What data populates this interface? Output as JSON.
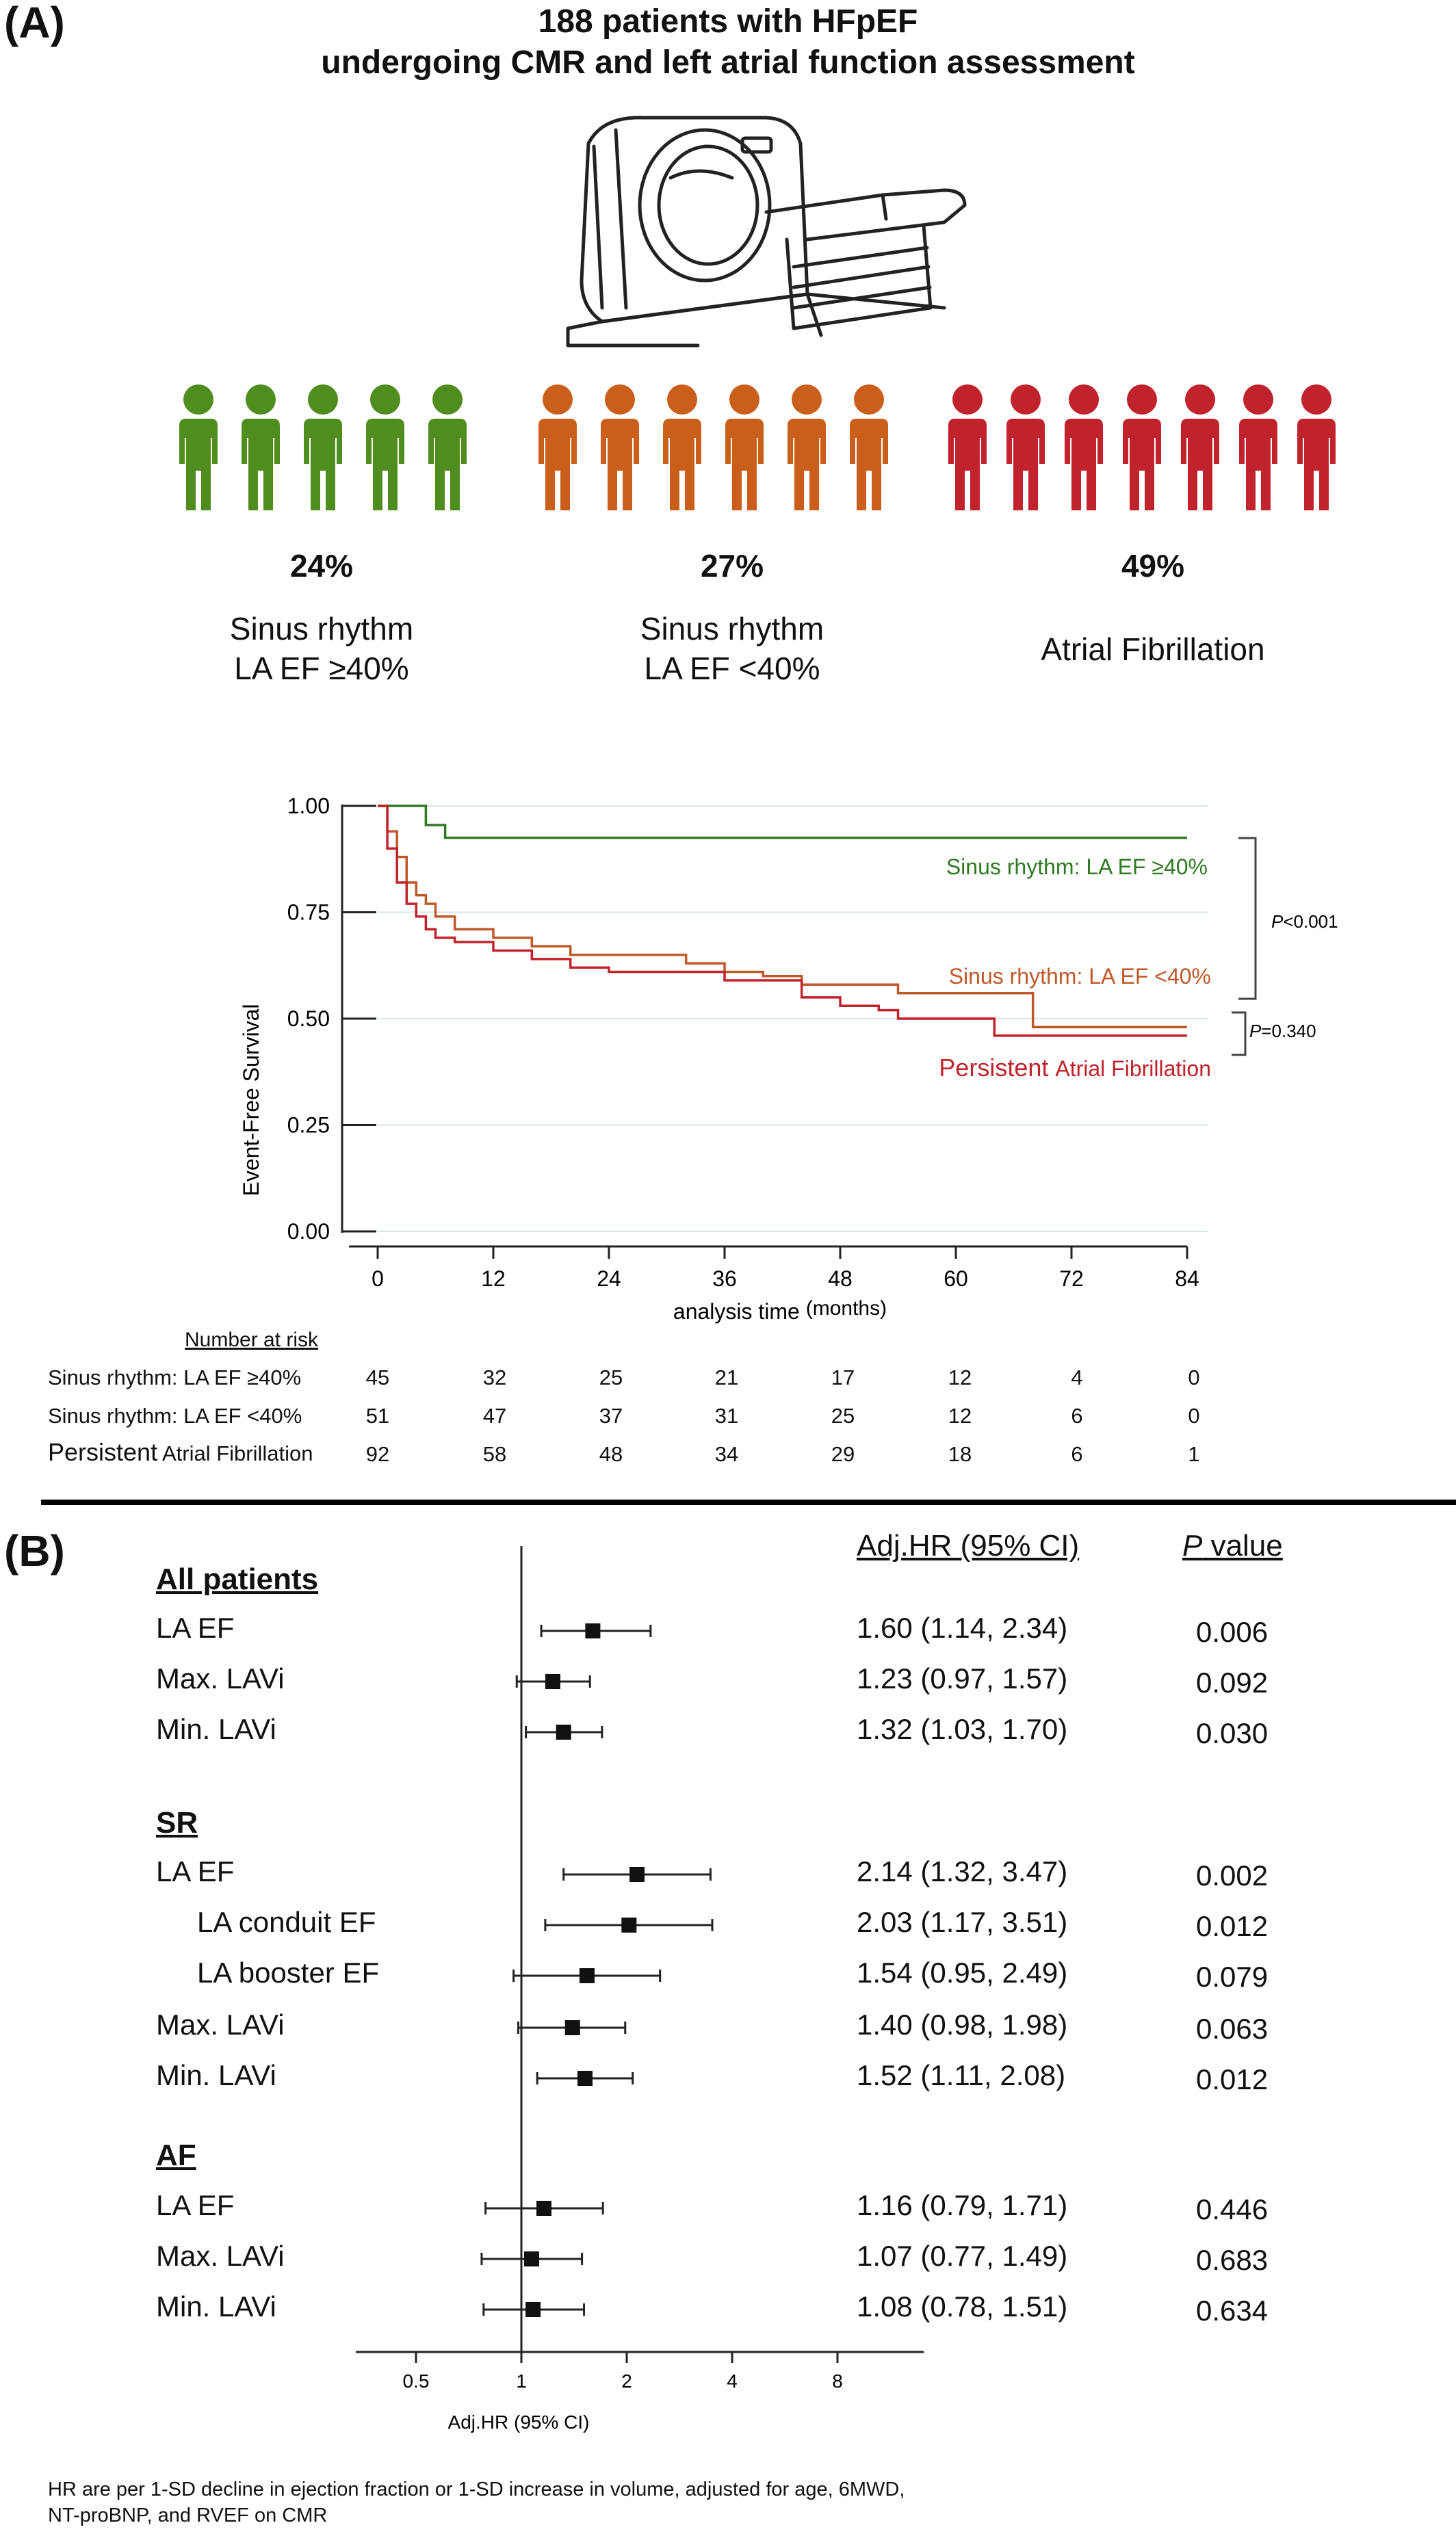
{
  "panel_a": {
    "letter": "(A)",
    "title_line1": "188 patients with HFpEF",
    "title_line2": "undergoing CMR and left atrial function assessment",
    "icon": "mri-scanner-icon",
    "groups": [
      {
        "pct": "24%",
        "label1": "Sinus rhythm",
        "label2": "LA EF ≥40%",
        "color": "#4f8d1e",
        "figures": 5
      },
      {
        "pct": "27%",
        "label1": "Sinus rhythm",
        "label2": "LA EF <40%",
        "color": "#c95f1b",
        "figures": 6
      },
      {
        "pct": "49%",
        "label1": "Atrial Fibrillation",
        "label2": "",
        "color": "#c0232b",
        "figures": 7
      }
    ],
    "risk_table": {
      "header": "Number at risk",
      "rows": [
        {
          "label": "Sinus rhythm: LA EF ≥40%",
          "values": [
            "45",
            "32",
            "25",
            "21",
            "17",
            "12",
            "4",
            "0"
          ]
        },
        {
          "label": "Sinus rhythm: LA EF <40%",
          "values": [
            "51",
            "47",
            "37",
            "31",
            "25",
            "12",
            "6",
            "0"
          ]
        },
        {
          "label_big": "Persistent",
          "label_small": " Atrial Fibrillation",
          "values": [
            "92",
            "58",
            "48",
            "34",
            "29",
            "18",
            "6",
            "1"
          ]
        }
      ]
    }
  },
  "panel_b": {
    "letter": "(B)",
    "col_hr": "Adj.HR (95% CI)",
    "col_p_italic": "P",
    "col_p_rest": " value",
    "sections": [
      {
        "heading": "All patients",
        "rows": [
          {
            "label": "LA EF",
            "hr": "1.60 (1.14, 2.34)",
            "p": "0.006"
          },
          {
            "label": "Max. LAVi",
            "hr": "1.23 (0.97, 1.57)",
            "p": "0.092"
          },
          {
            "label": "Min. LAVi",
            "hr": "1.32 (1.03, 1.70)",
            "p": "0.030"
          }
        ]
      },
      {
        "heading": "SR",
        "rows": [
          {
            "label": "LA EF",
            "hr": "2.14 (1.32, 3.47)",
            "p": "0.002"
          },
          {
            "label": "LA conduit EF",
            "hr": "2.03 (1.17, 3.51)",
            "p": "0.012"
          },
          {
            "label": "LA booster EF",
            "hr": "1.54 (0.95, 2.49)",
            "p": "0.079"
          },
          {
            "label": "Max. LAVi",
            "hr": "1.40 (0.98, 1.98)",
            "p": "0.063"
          },
          {
            "label": "Min. LAVi",
            "hr": "1.52 (1.11, 2.08)",
            "p": "0.012"
          }
        ]
      },
      {
        "heading": "AF",
        "rows": [
          {
            "label": "LA EF",
            "hr": "1.16 (0.79, 1.71)",
            "p": "0.446"
          },
          {
            "label": "Max. LAVi",
            "hr": "1.07 (0.77, 1.49)",
            "p": "0.683"
          },
          {
            "label": "Min. LAVi",
            "hr": "1.08 (0.78, 1.51)",
            "p": "0.634"
          }
        ]
      }
    ],
    "footnote_line1": "HR are per 1-SD decline in ejection fraction or 1-SD increase in volume, adjusted for age, 6MWD,",
    "footnote_line2": "NT-proBNP, and RVEF on CMR"
  },
  "chart_data": [
    {
      "type": "line",
      "title": "",
      "xlabel": "analysis time",
      "xlabel_unit": "(months)",
      "ylabel": "Event-Free Survival",
      "xlim": [
        0,
        84
      ],
      "ylim": [
        0,
        1
      ],
      "xticks": [
        "0",
        "12",
        "24",
        "36",
        "48",
        "60",
        "72",
        "84"
      ],
      "yticks": [
        "0.00",
        "0.25",
        "0.50",
        "0.75",
        "1.00"
      ],
      "grid": true,
      "series": [
        {
          "name": "Sinus rhythm: LA EF ≥40%",
          "color": "#2f7a22",
          "label_color": "#2f7a22",
          "x": [
            0,
            5,
            5,
            7,
            7,
            84
          ],
          "y": [
            1.0,
            1.0,
            0.955,
            0.955,
            0.925,
            0.925
          ]
        },
        {
          "name": "Sinus rhythm: LA EF <40%",
          "color": "#c0582a",
          "label_color": "#c0582a",
          "x": [
            0,
            1,
            1,
            2,
            2,
            3,
            3,
            4,
            4,
            5,
            5,
            6,
            6,
            8,
            8,
            12,
            12,
            16,
            16,
            20,
            20,
            32,
            32,
            36,
            36,
            40,
            40,
            44,
            44,
            54,
            54,
            68,
            68,
            84
          ],
          "y": [
            1.0,
            1.0,
            0.94,
            0.94,
            0.88,
            0.88,
            0.82,
            0.82,
            0.79,
            0.79,
            0.77,
            0.77,
            0.74,
            0.74,
            0.71,
            0.71,
            0.69,
            0.69,
            0.67,
            0.67,
            0.65,
            0.65,
            0.63,
            0.63,
            0.61,
            0.61,
            0.6,
            0.6,
            0.58,
            0.58,
            0.56,
            0.56,
            0.48,
            0.48
          ]
        },
        {
          "name_big": "Persistent",
          "name": "Atrial Fibrillation",
          "color": "#c0232b",
          "label_color": "#c0232b",
          "x": [
            0,
            1,
            1,
            2,
            2,
            3,
            3,
            4,
            4,
            5,
            5,
            6,
            6,
            8,
            8,
            12,
            12,
            16,
            16,
            20,
            20,
            24,
            24,
            36,
            36,
            44,
            44,
            48,
            48,
            52,
            52,
            54,
            54,
            64,
            64,
            84
          ],
          "y": [
            1.0,
            1.0,
            0.9,
            0.9,
            0.82,
            0.82,
            0.77,
            0.77,
            0.74,
            0.74,
            0.71,
            0.71,
            0.69,
            0.69,
            0.68,
            0.68,
            0.66,
            0.66,
            0.64,
            0.64,
            0.62,
            0.62,
            0.61,
            0.61,
            0.59,
            0.59,
            0.55,
            0.55,
            0.53,
            0.53,
            0.52,
            0.52,
            0.5,
            0.5,
            0.46,
            0.46
          ]
        }
      ],
      "annotations": [
        {
          "p_italic": "P",
          "p_value": "<0.001"
        },
        {
          "p_italic": "P",
          "p_value": "=0.340"
        }
      ]
    },
    {
      "type": "scatter",
      "subtype": "forest",
      "xlabel": "Adj.HR (95% CI)",
      "xscale": "log",
      "xlim": [
        0.35,
        12
      ],
      "xticks": [
        "0.5",
        "1",
        "2",
        "4",
        "8"
      ],
      "reference_line": 1,
      "points": [
        {
          "label": "LA EF",
          "hr": 1.6,
          "lo": 1.14,
          "hi": 2.34
        },
        {
          "label": "Max. LAVi",
          "hr": 1.23,
          "lo": 0.97,
          "hi": 1.57
        },
        {
          "label": "Min. LAVi",
          "hr": 1.32,
          "lo": 1.03,
          "hi": 1.7
        },
        {
          "label": "LA EF",
          "hr": 2.14,
          "lo": 1.32,
          "hi": 3.47
        },
        {
          "label": "LA conduit EF",
          "hr": 2.03,
          "lo": 1.17,
          "hi": 3.51
        },
        {
          "label": "LA booster EF",
          "hr": 1.54,
          "lo": 0.95,
          "hi": 2.49
        },
        {
          "label": "Max. LAVi",
          "hr": 1.4,
          "lo": 0.98,
          "hi": 1.98
        },
        {
          "label": "Min. LAVi",
          "hr": 1.52,
          "lo": 1.11,
          "hi": 2.08
        },
        {
          "label": "LA EF",
          "hr": 1.16,
          "lo": 0.79,
          "hi": 1.71
        },
        {
          "label": "Max. LAVi",
          "hr": 1.07,
          "lo": 0.77,
          "hi": 1.49
        },
        {
          "label": "Min. LAVi",
          "hr": 1.08,
          "lo": 0.78,
          "hi": 1.51
        }
      ]
    }
  ]
}
